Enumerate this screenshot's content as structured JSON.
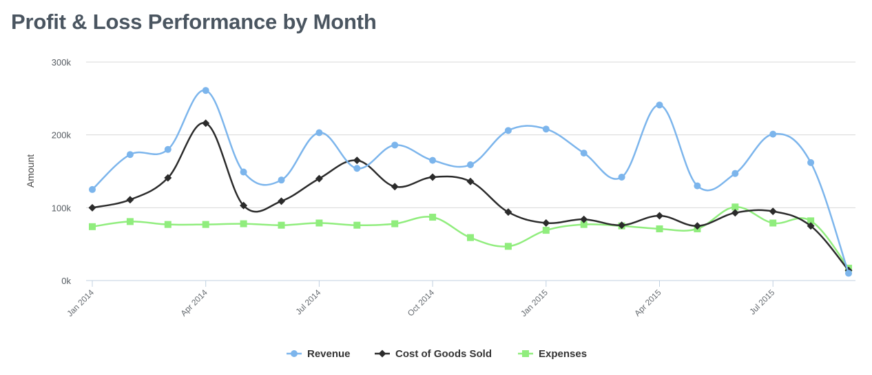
{
  "chart_data": {
    "type": "line",
    "title": "Profit & Loss Performance by Month",
    "ylabel": "Amount",
    "xlabel": "",
    "y_tick_labels": [
      "0k",
      "100k",
      "200k",
      "300k"
    ],
    "y_ticks": [
      0,
      100000,
      200000,
      300000
    ],
    "ylim": [
      0,
      300000
    ],
    "x_tick_labels": [
      "Jan 2014",
      "Apr 2014",
      "Jul 2014",
      "Oct 2014",
      "Jan 2015",
      "Apr 2015",
      "Jul 2015"
    ],
    "x_tick_indices": [
      0,
      3,
      6,
      9,
      12,
      15,
      18
    ],
    "months": [
      "2014-01",
      "2014-02",
      "2014-03",
      "2014-04",
      "2014-05",
      "2014-06",
      "2014-07",
      "2014-08",
      "2014-09",
      "2014-10",
      "2014-11",
      "2014-12",
      "2015-01",
      "2015-02",
      "2015-03",
      "2015-04",
      "2015-05",
      "2015-06",
      "2015-07",
      "2015-08",
      "2015-09"
    ],
    "grid": true,
    "legend_position": "bottom-center",
    "series": [
      {
        "name": "Revenue",
        "color": "#7cb5ec",
        "marker": "circle",
        "values": [
          125000,
          173000,
          180000,
          261000,
          149000,
          138000,
          203000,
          154000,
          186000,
          165000,
          159000,
          206000,
          208000,
          175000,
          142000,
          241000,
          130000,
          147000,
          201000,
          162000,
          10000
        ]
      },
      {
        "name": "Cost of Goods Sold",
        "color": "#2b2b2b",
        "marker": "diamond",
        "values": [
          100000,
          111000,
          141000,
          216000,
          103000,
          109000,
          140000,
          165000,
          129000,
          142000,
          136000,
          94000,
          79000,
          84000,
          76000,
          89000,
          75000,
          93000,
          95000,
          75000,
          14000
        ]
      },
      {
        "name": "Expenses",
        "color": "#90ed7d",
        "marker": "square",
        "values": [
          74000,
          81000,
          77000,
          77000,
          78000,
          76000,
          79000,
          76000,
          78000,
          87000,
          59000,
          47000,
          69000,
          77000,
          75000,
          71000,
          71000,
          101000,
          79000,
          82000,
          17000
        ]
      }
    ]
  }
}
